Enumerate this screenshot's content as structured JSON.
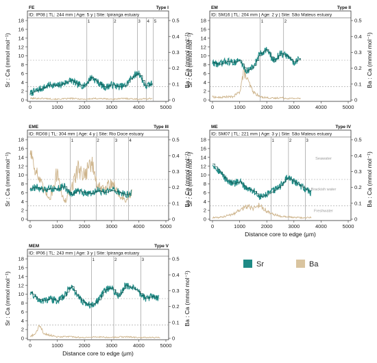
{
  "legend": [
    {
      "name": "Sr",
      "color": "#1e8a85"
    },
    {
      "name": "Ba",
      "color": "#d9c49f"
    }
  ],
  "colors": {
    "sr": "#1e8a85",
    "sr_smooth": "#0d4f4b",
    "ba": "#cdb38a",
    "line": "#8a8a8a"
  },
  "chart_data": [
    {
      "type": "line",
      "group": "FE",
      "group_type": "Type I",
      "info": "ID: IP08 | TL: 244 mm | Age: 5 y | Site: Ipiranga estuary",
      "xlabel": "",
      "ylabel_left": "Sr : Ca (mmol mol⁻¹)",
      "ylabel_right": "Ba : Ca (mmol mol⁻¹)",
      "xlim": [
        0,
        5000
      ],
      "ylim_left": [
        0,
        18
      ],
      "ylim_right": [
        0,
        0.5
      ],
      "hlines_left": [
        3,
        9
      ],
      "annuli": [
        {
          "label": "1",
          "x": 2090
        },
        {
          "label": "2",
          "x": 3060
        },
        {
          "label": "3",
          "x": 3950
        },
        {
          "label": "4",
          "x": 4280
        },
        {
          "label": "5",
          "x": 4540
        }
      ],
      "zones": [],
      "series": [
        {
          "name": "Sr",
          "x": [
            0,
            250,
            500,
            750,
            1000,
            1250,
            1500,
            1750,
            2000,
            2250,
            2500,
            2750,
            3000,
            3250,
            3500,
            3750,
            4000,
            4250,
            4500
          ],
          "values": [
            1.5,
            2.2,
            2.8,
            3.5,
            3.2,
            3.8,
            4.5,
            3.5,
            3.2,
            5.2,
            4.0,
            2.8,
            3.5,
            3.0,
            3.2,
            5.2,
            6.2,
            3.0,
            3.8
          ]
        },
        {
          "name": "Ba",
          "x": [
            0,
            500,
            1000,
            1500,
            2000,
            2500,
            3000,
            3500,
            4000,
            4500
          ],
          "values": [
            0.01,
            0.01,
            0.005,
            0.01,
            0.005,
            0.01,
            0.005,
            0.01,
            0.005,
            0.01
          ]
        }
      ]
    },
    {
      "type": "line",
      "group": "EM",
      "group_type": "Type II",
      "info": "ID: SM16 | TL: 204 mm | Age: 2 y | Site: São Mateus estuary",
      "xlabel": "",
      "ylabel_left": "Sr : Ca (mmol mol⁻¹)",
      "ylabel_right": "Ba : Ca (mmol mol⁻¹)",
      "xlim": [
        0,
        5000
      ],
      "ylim_left": [
        0,
        18
      ],
      "ylim_right": [
        0,
        0.5
      ],
      "hlines_left": [
        3,
        9
      ],
      "annuli": [
        {
          "label": "1",
          "x": 1760
        },
        {
          "label": "2",
          "x": 2620
        }
      ],
      "zones": [],
      "series": [
        {
          "name": "Sr",
          "x": [
            0,
            250,
            500,
            750,
            1000,
            1250,
            1500,
            1750,
            2000,
            2250,
            2500,
            2750,
            3000,
            3250
          ],
          "values": [
            8.5,
            8.0,
            8.8,
            8.5,
            9.0,
            6.5,
            7.5,
            10.5,
            11.5,
            8.8,
            10.5,
            10.0,
            8.5,
            9.5
          ]
        },
        {
          "name": "Ba",
          "x": [
            0,
            250,
            500,
            750,
            1000,
            1150,
            1300,
            1500,
            1750,
            2000,
            2250,
            2500,
            2750,
            3000,
            3250
          ],
          "values": [
            0.02,
            0.015,
            0.02,
            0.02,
            0.05,
            0.18,
            0.12,
            0.05,
            0.02,
            0.015,
            0.01,
            0.015,
            0.01,
            0.01,
            0.01
          ]
        }
      ]
    },
    {
      "type": "line",
      "group": "EME",
      "group_type": "Type III",
      "info": "ID: RD08 | TL: 304 mm | Age: 4 y | Site: Rio Doce estuary",
      "xlabel": "",
      "ylabel_left": "Sr : Ca (mmol mol⁻¹)",
      "ylabel_right": "Ba : Ca (mmol mol⁻¹)",
      "xlim": [
        0,
        5000
      ],
      "ylim_left": [
        0,
        18
      ],
      "ylim_right": [
        0,
        0.5
      ],
      "hlines_left": [
        3,
        9
      ],
      "annuli": [
        {
          "label": "1",
          "x": 1480
        },
        {
          "label": "2",
          "x": 2430
        },
        {
          "label": "3",
          "x": 3100
        },
        {
          "label": "4",
          "x": 3620
        }
      ],
      "zones": [],
      "series": [
        {
          "name": "Sr",
          "x": [
            0,
            250,
            500,
            750,
            1000,
            1250,
            1500,
            1750,
            2000,
            2250,
            2500,
            2750,
            3000,
            3250,
            3500,
            3750
          ],
          "values": [
            7.0,
            7.2,
            6.5,
            7.0,
            6.8,
            7.5,
            5.5,
            6.5,
            6.0,
            5.8,
            6.5,
            6.0,
            6.5,
            6.2,
            5.5,
            6.0
          ]
        },
        {
          "name": "Ba",
          "x": [
            0,
            150,
            300,
            500,
            750,
            1000,
            1250,
            1500,
            1750,
            2000,
            2250,
            2500,
            2750,
            3000,
            3250,
            3500,
            3750
          ],
          "values": [
            0.44,
            0.35,
            0.26,
            0.18,
            0.14,
            0.3,
            0.1,
            0.18,
            0.32,
            0.28,
            0.36,
            0.2,
            0.18,
            0.24,
            0.16,
            0.12,
            0.16
          ]
        }
      ]
    },
    {
      "type": "line",
      "group": "ME",
      "group_type": "Type IV",
      "info": "ID: SM07 | TL: 221 mm | Age: 3 y | Site: São Mateus estuary",
      "xlabel": "Distance core to edge (μm)",
      "ylabel_left": "Sr : Ca (mmol mol⁻¹)",
      "ylabel_right": "Ba : Ca (mmol mol⁻¹)",
      "xlim": [
        0,
        5000
      ],
      "ylim_left": [
        0,
        18
      ],
      "ylim_right": [
        0,
        0.5
      ],
      "hlines_left": [
        3,
        9
      ],
      "annuli": [
        {
          "label": "1",
          "x": 2160
        },
        {
          "label": "2",
          "x": 2800
        },
        {
          "label": "3",
          "x": 3420
        }
      ],
      "zones": [
        "Seawater",
        "Brackish water",
        "Freshwater"
      ],
      "series": [
        {
          "name": "Sr",
          "x": [
            0,
            150,
            300,
            500,
            750,
            1000,
            1250,
            1500,
            1750,
            2000,
            2250,
            2500,
            2750,
            3000,
            3250,
            3500,
            3650
          ],
          "values": [
            12.5,
            11.5,
            10.5,
            9.0,
            8.0,
            8.5,
            7.0,
            6.5,
            5.0,
            5.5,
            6.5,
            7.5,
            9.5,
            8.5,
            7.5,
            6.5,
            6.0
          ]
        },
        {
          "name": "Ba",
          "x": [
            0,
            250,
            500,
            750,
            1000,
            1250,
            1500,
            1750,
            2000,
            2250,
            2500,
            2750,
            3000,
            3250,
            3500,
            3650
          ],
          "values": [
            0.01,
            0.01,
            0.02,
            0.03,
            0.06,
            0.08,
            0.07,
            0.09,
            0.05,
            0.03,
            0.02,
            0.015,
            0.01,
            0.01,
            0.01,
            0.01
          ]
        }
      ]
    },
    {
      "type": "line",
      "group": "MEM",
      "group_type": "Type V",
      "info": "ID: IP06 | TL: 243 mm | Age: 3 y | Site: Ipiranga estuary",
      "xlabel": "Distance core to edge (μm)",
      "ylabel_left": "Sr : Ca (mmol mol⁻¹)",
      "ylabel_right": "Ba : Ca (mmol mol⁻¹)",
      "xlim": [
        0,
        5000
      ],
      "ylim_left": [
        0,
        18
      ],
      "ylim_right": [
        0,
        0.5
      ],
      "hlines_left": [
        3,
        9
      ],
      "annuli": [
        {
          "label": "1",
          "x": 2260
        },
        {
          "label": "2",
          "x": 3080
        },
        {
          "label": "3",
          "x": 4080
        }
      ],
      "zones": [],
      "series": [
        {
          "name": "Sr",
          "x": [
            0,
            250,
            500,
            750,
            1000,
            1250,
            1500,
            1750,
            2000,
            2250,
            2500,
            2750,
            3000,
            3250,
            3500,
            3750,
            4000,
            4250,
            4500,
            4750
          ],
          "values": [
            10.5,
            9.0,
            8.5,
            9.0,
            8.5,
            9.5,
            12.0,
            9.5,
            8.0,
            7.5,
            8.5,
            11.0,
            11.5,
            9.5,
            12.0,
            11.5,
            10.5,
            9.0,
            9.5,
            9.0
          ]
        },
        {
          "name": "Ba",
          "x": [
            0,
            200,
            350,
            500,
            750,
            1000,
            1500,
            2000,
            2500,
            3000,
            3500,
            4000,
            4500,
            4800
          ],
          "values": [
            0.01,
            0.03,
            0.08,
            0.03,
            0.02,
            0.01,
            0.01,
            0.005,
            0.01,
            0.005,
            0.01,
            0.005,
            0.005,
            0.005
          ]
        }
      ]
    }
  ]
}
